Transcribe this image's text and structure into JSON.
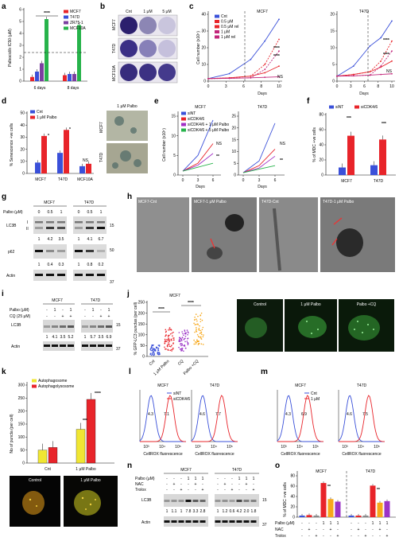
{
  "panels": {
    "a": {
      "label": "a",
      "ylabel": "Palbociclib IC50 (μM)",
      "groups": [
        "6 days",
        "8 days"
      ],
      "legend": [
        "MCF7",
        "T47D",
        "ZR75-1",
        "MCF10A"
      ],
      "colors": [
        "#e8242a",
        "#3a50d9",
        "#7b3fa0",
        "#27b34b"
      ],
      "values": [
        [
          0.35,
          0.8,
          1.5,
          5.2
        ],
        [
          0.5,
          0.6,
          0.6,
          4.7
        ]
      ],
      "yticks": [
        "0",
        "1",
        "2",
        "3",
        "4",
        "5",
        "6"
      ],
      "sig": "****"
    },
    "b": {
      "label": "b",
      "cols": [
        "Cnt",
        "1 μM",
        "5 μM"
      ],
      "rows": [
        "MCF7",
        "T47D",
        "MCF10A"
      ]
    },
    "c": {
      "label": "c",
      "ylabel": "Cell number (x10⁵)",
      "xlabel": "Days",
      "legend": [
        "Cnt",
        "0.5 μM",
        "0.5 μM rel",
        "1 μM",
        "1 μM rel"
      ],
      "left": {
        "title": "MCF7",
        "yticks": [
          "0",
          "10",
          "20",
          "30",
          "40"
        ],
        "ns": "NS",
        "sig1": "****",
        "sig2": "****"
      },
      "right": {
        "title": "T47D",
        "yticks": [
          "0",
          "5",
          "10",
          "15",
          "20"
        ],
        "ns": "NS",
        "sig1": "****",
        "sig2": "****"
      },
      "xticks": [
        "0",
        "3",
        "6",
        "8",
        "10"
      ]
    },
    "d": {
      "label": "d",
      "ylabel": "% Senescence +ve cells",
      "legend": [
        "Cnt",
        "1 μM Palbo"
      ],
      "groups": [
        "MCF7",
        "T47D",
        "MCF10A"
      ],
      "values": [
        [
          9,
          31
        ],
        [
          17,
          36
        ],
        [
          6,
          8
        ]
      ],
      "yticks": [
        "0",
        "10",
        "20",
        "30",
        "40",
        "50"
      ],
      "sig": "*",
      "ns": "NS",
      "img_title": "1 μM Palbo",
      "img_rows": [
        "MCF7",
        "T47D"
      ]
    },
    "e": {
      "label": "e",
      "ylabel": "Cell number (x10⁵)",
      "xlabel": "Days",
      "legend": [
        "siNT",
        "siCDK4/6",
        "siCDK4/6 + 1 μM Palbo",
        "siCDK4/6 + 5 μM Palbo"
      ],
      "left": {
        "title": "MCF7",
        "yticks": [
          "0",
          "5",
          "10",
          "15"
        ]
      },
      "right": {
        "title": "T47D",
        "yticks": [
          "0",
          "5",
          "10",
          "15",
          "20",
          "25"
        ]
      },
      "xticks": [
        "0",
        "3",
        "6"
      ],
      "ns": "NS",
      "sig": "**"
    },
    "f": {
      "label": "f",
      "ylabel": "% of MDC +ve cells",
      "legend": [
        "siNT",
        "siCDK4/6"
      ],
      "groups": [
        "MCF7",
        "T47D"
      ],
      "values": [
        [
          10,
          52
        ],
        [
          13,
          47
        ]
      ],
      "yticks": [
        "0",
        "20",
        "40",
        "60",
        "80"
      ],
      "sig": "***"
    },
    "g": {
      "label": "g",
      "cell_lines": [
        "MCF7",
        "T47D"
      ],
      "palbo_label": "Palbo (μM)",
      "doses": [
        "0",
        "0.5",
        "1"
      ],
      "lc3b": "LC3B",
      "lc3_forms": [
        "I",
        "II"
      ],
      "p62": "p62",
      "actin": "Actin",
      "lc3_values": [
        [
          "1",
          "4.2",
          "3.5"
        ],
        [
          "1",
          "4.1",
          "6.7"
        ]
      ],
      "p62_values": [
        [
          "1",
          "0.4",
          "0.3"
        ],
        [
          "1",
          "0.8",
          "0.2"
        ]
      ],
      "mw": [
        "15",
        "50",
        "37"
      ]
    },
    "h": {
      "label": "h",
      "titles": [
        "MCF7-Cnt",
        "MCF7-1 μM Palbo",
        "T47D-Cnt",
        "T47D-1 μM Palbo"
      ]
    },
    "i": {
      "label": "i",
      "cell_lines": [
        "MCF7",
        "T47D"
      ],
      "palbo_label": "Palbo (μM)",
      "cq_label": "CQ (25 μM)",
      "palbo": [
        "-",
        "1",
        "-",
        "1"
      ],
      "cq": [
        "-",
        "-",
        "+",
        "+"
      ],
      "lc3b": "LC3B",
      "actin": "Actin",
      "values": [
        [
          "1",
          "4.1",
          "3.5",
          "5.2"
        ],
        [
          "1",
          "5.7",
          "3.5",
          "6.9"
        ]
      ],
      "mw": [
        "15",
        "37"
      ]
    },
    "j": {
      "label": "j",
      "title": "MCF7",
      "ylabel": "% GFP-LC3 punctas (per cell)",
      "groups": [
        "Cnt",
        "1 μM Palbo",
        "CQ",
        "Palbo +CQ"
      ],
      "yticks": [
        "0",
        "50",
        "100",
        "150",
        "200",
        "250"
      ],
      "sig": "****",
      "img_titles": [
        "Control",
        "1 μM Palbo",
        "Palbo +CQ"
      ]
    },
    "k": {
      "label": "k",
      "ylabel": "No of puncta (per cell)",
      "legend": [
        "Autophagosome",
        "Autophagolysosome"
      ],
      "groups": [
        "Cnt",
        "1 μM Palbo"
      ],
      "values": [
        [
          50,
          60
        ],
        [
          130,
          245
        ]
      ],
      "yticks": [
        "0",
        "50",
        "100",
        "150",
        "200",
        "250",
        "300"
      ],
      "sig1": "***",
      "sig2": "****",
      "img_titles": [
        "Control",
        "1 μM Palbo"
      ]
    },
    "l": {
      "label": "l",
      "legend": [
        "siNT",
        "siCDK4/6"
      ],
      "titles": [
        "MCF7",
        "T47D"
      ],
      "values": [
        [
          "4.3",
          "7.1"
        ],
        [
          "4.6",
          "7.7"
        ]
      ],
      "xlabel": "CellROX fluorescence",
      "xticks": [
        "10³",
        "10⁴",
        "10⁵"
      ]
    },
    "m": {
      "label": "m",
      "legend": [
        "Cnt",
        "1 μM"
      ],
      "titles": [
        "MCF7",
        "T47D"
      ],
      "values": [
        [
          "4.3",
          "6.9"
        ],
        [
          "4.6",
          "7.5"
        ]
      ],
      "xlabel": "CellROX fluorescence",
      "xticks": [
        "10³",
        "10⁴",
        "10⁵"
      ]
    },
    "n": {
      "label": "n",
      "cell_lines": [
        "MCF7",
        "T47D"
      ],
      "rows": [
        "Palbo (μM)",
        "NAC",
        "Trolox"
      ],
      "palbo": [
        "-",
        "-",
        "-",
        "1",
        "1",
        "1"
      ],
      "nac": [
        "-",
        "+",
        "-",
        "-",
        "+",
        "-"
      ],
      "trolox": [
        "-",
        "-",
        "+",
        "-",
        "-",
        "+"
      ],
      "lc3b": "LC3B",
      "actin": "Actin",
      "values": [
        [
          "1",
          "1.1",
          "1",
          "7.8",
          "3.3",
          "2.8"
        ],
        [
          "1",
          "1.2",
          "0.6",
          "4.2",
          "2.0",
          "1.8"
        ]
      ],
      "mw": [
        "15",
        "37"
      ]
    },
    "o": {
      "label": "o",
      "ylabel": "% of MDC +ve cells",
      "groups": [
        "MCF7",
        "T47D"
      ],
      "yticks": [
        "0",
        "20",
        "40",
        "60",
        "80"
      ],
      "rows": [
        "Palbo (μM)",
        "NAC",
        "Trolox"
      ],
      "palbo": [
        "-",
        "-",
        "-",
        "1",
        "1",
        "1"
      ],
      "nac": [
        "-",
        "+",
        "-",
        "-",
        "+",
        "-"
      ],
      "trolox": [
        "-",
        "-",
        "+",
        "-",
        "-",
        "+"
      ],
      "colors": [
        "#3a50d9",
        "#e8242a",
        "#888888",
        "#e8242a",
        "#f7a81b",
        "#9b33c6"
      ],
      "values": [
        [
          3,
          4,
          3,
          66,
          35,
          30
        ],
        [
          3,
          3,
          3,
          61,
          28,
          31
        ]
      ],
      "sig": "**"
    }
  }
}
